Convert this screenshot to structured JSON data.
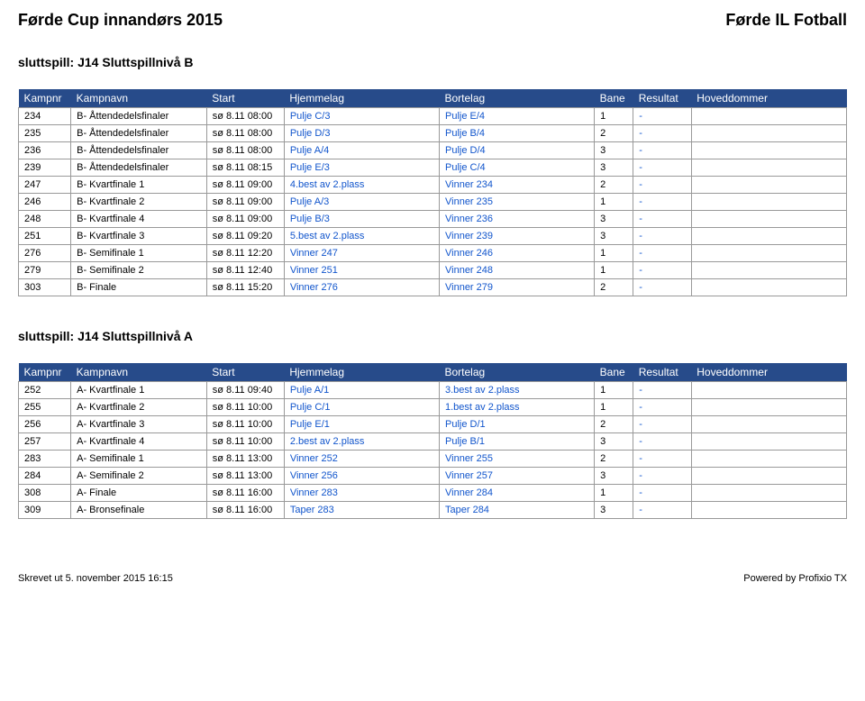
{
  "header": {
    "left": "Førde Cup innandørs 2015",
    "right": "Førde IL Fotball"
  },
  "sections": [
    {
      "title": "sluttspill: J14 Sluttspillnivå B",
      "columns": [
        "Kampnr",
        "Kampnavn",
        "Start",
        "Hjemmelag",
        "Bortelag",
        "Bane",
        "Resultat",
        "Hoveddommer"
      ],
      "rows": [
        {
          "nr": "234",
          "navn": "B- Åttendedelsfinaler",
          "start": "sø 8.11 08:00",
          "hjem": "Pulje C/3",
          "borte": "Pulje E/4",
          "bane": "1",
          "res": "-",
          "dommer": ""
        },
        {
          "nr": "235",
          "navn": "B- Åttendedelsfinaler",
          "start": "sø 8.11 08:00",
          "hjem": "Pulje D/3",
          "borte": "Pulje B/4",
          "bane": "2",
          "res": "-",
          "dommer": ""
        },
        {
          "nr": "236",
          "navn": "B- Åttendedelsfinaler",
          "start": "sø 8.11 08:00",
          "hjem": "Pulje A/4",
          "borte": "Pulje D/4",
          "bane": "3",
          "res": "-",
          "dommer": ""
        },
        {
          "nr": "239",
          "navn": "B- Åttendedelsfinaler",
          "start": "sø 8.11 08:15",
          "hjem": "Pulje E/3",
          "borte": "Pulje C/4",
          "bane": "3",
          "res": "-",
          "dommer": ""
        },
        {
          "nr": "247",
          "navn": "B- Kvartfinale 1",
          "start": "sø 8.11 09:00",
          "hjem": "4.best av 2.plass",
          "borte": "Vinner 234",
          "bane": "2",
          "res": "-",
          "dommer": ""
        },
        {
          "nr": "246",
          "navn": "B- Kvartfinale 2",
          "start": "sø 8.11 09:00",
          "hjem": "Pulje A/3",
          "borte": "Vinner 235",
          "bane": "1",
          "res": "-",
          "dommer": ""
        },
        {
          "nr": "248",
          "navn": "B- Kvartfinale 4",
          "start": "sø 8.11 09:00",
          "hjem": "Pulje B/3",
          "borte": "Vinner 236",
          "bane": "3",
          "res": "-",
          "dommer": ""
        },
        {
          "nr": "251",
          "navn": "B- Kvartfinale 3",
          "start": "sø 8.11 09:20",
          "hjem": "5.best av 2.plass",
          "borte": "Vinner 239",
          "bane": "3",
          "res": "-",
          "dommer": ""
        },
        {
          "nr": "276",
          "navn": "B- Semifinale 1",
          "start": "sø 8.11 12:20",
          "hjem": "Vinner 247",
          "borte": "Vinner 246",
          "bane": "1",
          "res": "-",
          "dommer": ""
        },
        {
          "nr": "279",
          "navn": "B- Semifinale 2",
          "start": "sø 8.11 12:40",
          "hjem": "Vinner 251",
          "borte": "Vinner 248",
          "bane": "1",
          "res": "-",
          "dommer": ""
        },
        {
          "nr": "303",
          "navn": "B- Finale",
          "start": "sø 8.11 15:20",
          "hjem": "Vinner 276",
          "borte": "Vinner 279",
          "bane": "2",
          "res": "-",
          "dommer": ""
        }
      ]
    },
    {
      "title": "sluttspill: J14 Sluttspillnivå A",
      "columns": [
        "Kampnr",
        "Kampnavn",
        "Start",
        "Hjemmelag",
        "Bortelag",
        "Bane",
        "Resultat",
        "Hoveddommer"
      ],
      "rows": [
        {
          "nr": "252",
          "navn": "A- Kvartfinale 1",
          "start": "sø 8.11 09:40",
          "hjem": "Pulje A/1",
          "borte": "3.best av 2.plass",
          "bane": "1",
          "res": "-",
          "dommer": ""
        },
        {
          "nr": "255",
          "navn": "A- Kvartfinale 2",
          "start": "sø 8.11 10:00",
          "hjem": "Pulje C/1",
          "borte": "1.best av 2.plass",
          "bane": "1",
          "res": "-",
          "dommer": ""
        },
        {
          "nr": "256",
          "navn": "A- Kvartfinale 3",
          "start": "sø 8.11 10:00",
          "hjem": "Pulje E/1",
          "borte": "Pulje D/1",
          "bane": "2",
          "res": "-",
          "dommer": ""
        },
        {
          "nr": "257",
          "navn": "A- Kvartfinale 4",
          "start": "sø 8.11 10:00",
          "hjem": "2.best av 2.plass",
          "borte": "Pulje B/1",
          "bane": "3",
          "res": "-",
          "dommer": ""
        },
        {
          "nr": "283",
          "navn": "A- Semifinale 1",
          "start": "sø 8.11 13:00",
          "hjem": "Vinner 252",
          "borte": "Vinner 255",
          "bane": "2",
          "res": "-",
          "dommer": ""
        },
        {
          "nr": "284",
          "navn": "A- Semifinale 2",
          "start": "sø 8.11 13:00",
          "hjem": "Vinner 256",
          "borte": "Vinner 257",
          "bane": "3",
          "res": "-",
          "dommer": ""
        },
        {
          "nr": "308",
          "navn": "A- Finale",
          "start": "sø 8.11 16:00",
          "hjem": "Vinner 283",
          "borte": "Vinner 284",
          "bane": "1",
          "res": "-",
          "dommer": ""
        },
        {
          "nr": "309",
          "navn": "A- Bronsefinale",
          "start": "sø 8.11 16:00",
          "hjem": "Taper 283",
          "borte": "Taper 284",
          "bane": "3",
          "res": "-",
          "dommer": ""
        }
      ]
    }
  ],
  "footer": {
    "left": "Skrevet ut 5. november 2015 16:15",
    "right": "Powered by Profixio TX"
  },
  "colors": {
    "headerBg": "#274b8a",
    "headerText": "#ffffff",
    "link": "#1155cc",
    "border": "#999999"
  }
}
